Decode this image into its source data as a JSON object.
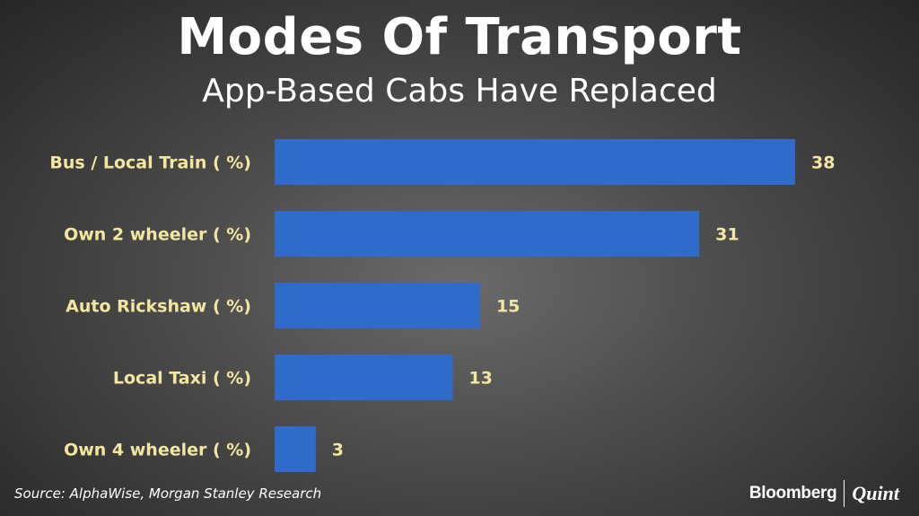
{
  "chart_data": {
    "type": "bar",
    "orientation": "horizontal",
    "title": "Modes Of Transport",
    "subtitle": "App-Based Cabs Have Replaced",
    "categories": [
      "Bus / Local Train ( %)",
      "Own 2 wheeler ( %)",
      "Auto Rickshaw ( %)",
      "Local Taxi ( %)",
      "Own 4 wheeler ( %)"
    ],
    "values": [
      38,
      31,
      15,
      13,
      3
    ],
    "xlim": [
      0,
      40
    ],
    "grid": false,
    "legend": "none",
    "bar_color": "#2f6cc9",
    "label_color": "#f3e7a0"
  },
  "footer": {
    "source": "Source: AlphaWise, Morgan Stanley Research",
    "logo_left": "Bloomberg",
    "logo_right": "Quint"
  }
}
